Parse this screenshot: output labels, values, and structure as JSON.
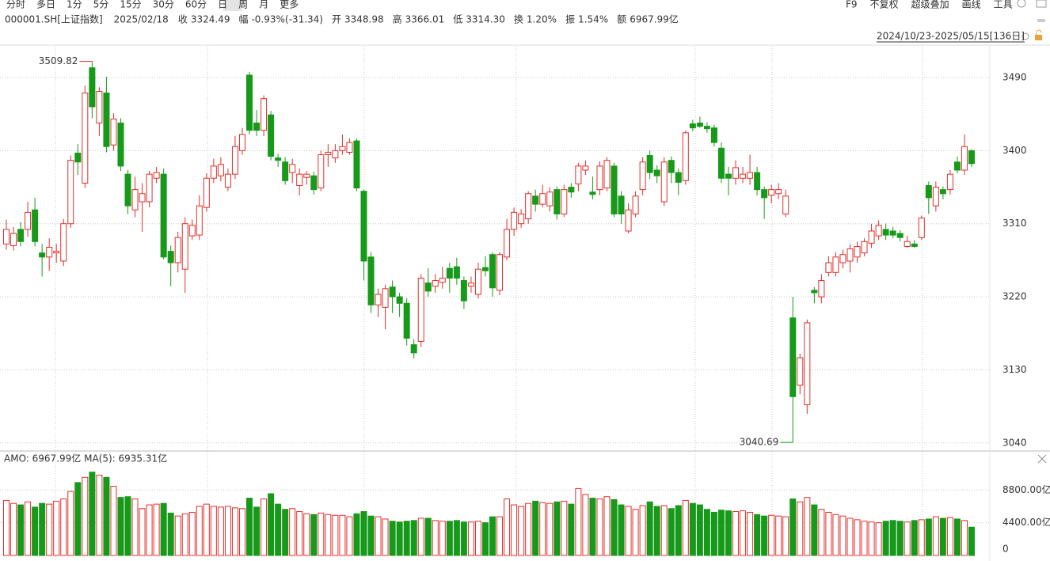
{
  "toolbar": {
    "periods": [
      "分时",
      "多日",
      "1分",
      "5分",
      "15分",
      "30分",
      "60分",
      "日",
      "周",
      "月",
      "更多"
    ],
    "tools": [
      "F9",
      "不复权",
      "超级叠加",
      "画线",
      "工具"
    ]
  },
  "info": {
    "symbol": "000001.SH[上证指数]",
    "date": "2025/02/18",
    "fields": [
      {
        "label": "收",
        "value": "3324.49",
        "color": "#17991a"
      },
      {
        "label": "幅",
        "value": "-0.93%(-31.34)",
        "color": "#17991a"
      },
      {
        "label": "开",
        "value": "3348.98",
        "color": "#17991a"
      },
      {
        "label": "高",
        "value": "3366.01",
        "color": "#e0302b"
      },
      {
        "label": "低",
        "value": "3314.30",
        "color": "#17991a"
      },
      {
        "label": "换",
        "value": "1.20%",
        "color": "#333333"
      },
      {
        "label": "振",
        "value": "1.54%",
        "color": "#333333"
      },
      {
        "label": "额",
        "value": "6967.99亿",
        "color": "#333333"
      }
    ]
  },
  "chart_data": {
    "type": "candlestick",
    "range_label": "2024/10/23-2025/05/15[136日]",
    "ylim": [
      3032,
      3529
    ],
    "yticks": [
      3040,
      3130,
      3220,
      3310,
      3400,
      3490
    ],
    "grid": true,
    "up_color": "#e0302b",
    "down_color": "#17991a",
    "annotations": [
      3509.82,
      3040.69
    ],
    "candles": [
      [
        3285,
        3315,
        3278,
        3303
      ],
      [
        3283,
        3306,
        3277,
        3298
      ],
      [
        3303,
        3312,
        3282,
        3288
      ],
      [
        3303,
        3337,
        3294,
        3324
      ],
      [
        3327,
        3342,
        3282,
        3288
      ],
      [
        3274,
        3285,
        3245,
        3269
      ],
      [
        3269,
        3292,
        3252,
        3281
      ],
      [
        3274,
        3285,
        3262,
        3276
      ],
      [
        3264,
        3316,
        3258,
        3310
      ],
      [
        3310,
        3394,
        3305,
        3388
      ],
      [
        3397,
        3408,
        3370,
        3386
      ],
      [
        3360,
        3480,
        3354,
        3471
      ],
      [
        3502,
        3509.82,
        3440,
        3454
      ],
      [
        3434,
        3478,
        3418,
        3473
      ],
      [
        3471,
        3491,
        3398,
        3405
      ],
      [
        3407,
        3446,
        3400,
        3439
      ],
      [
        3434,
        3440,
        3375,
        3381
      ],
      [
        3371,
        3376,
        3322,
        3332
      ],
      [
        3327,
        3368,
        3318,
        3352
      ],
      [
        3337,
        3360,
        3300,
        3347
      ],
      [
        3337,
        3375,
        3330,
        3371
      ],
      [
        3366,
        3380,
        3360,
        3373
      ],
      [
        3371,
        3378,
        3266,
        3269
      ],
      [
        3276,
        3283,
        3233,
        3262
      ],
      [
        3262,
        3300,
        3250,
        3293
      ],
      [
        3254,
        3318,
        3225,
        3310
      ],
      [
        3295,
        3315,
        3290,
        3308
      ],
      [
        3296,
        3345,
        3290,
        3332
      ],
      [
        3330,
        3372,
        3325,
        3366
      ],
      [
        3366,
        3390,
        3360,
        3381
      ],
      [
        3369,
        3392,
        3362,
        3383
      ],
      [
        3355,
        3378,
        3350,
        3371
      ],
      [
        3371,
        3418,
        3365,
        3405
      ],
      [
        3400,
        3428,
        3395,
        3420
      ],
      [
        3493,
        3497,
        3420,
        3425
      ],
      [
        3434,
        3450,
        3418,
        3425
      ],
      [
        3425,
        3468,
        3418,
        3464
      ],
      [
        3444,
        3449,
        3388,
        3393
      ],
      [
        3391,
        3396,
        3380,
        3388
      ],
      [
        3386,
        3392,
        3358,
        3363
      ],
      [
        3373,
        3390,
        3360,
        3383
      ],
      [
        3357,
        3378,
        3345,
        3371
      ],
      [
        3367,
        3375,
        3358,
        3371
      ],
      [
        3369,
        3374,
        3346,
        3352
      ],
      [
        3354,
        3400,
        3350,
        3395
      ],
      [
        3395,
        3408,
        3380,
        3398
      ],
      [
        3391,
        3408,
        3385,
        3400
      ],
      [
        3400,
        3420,
        3395,
        3405
      ],
      [
        3398,
        3415,
        3395,
        3410
      ],
      [
        3412,
        3415,
        3350,
        3354
      ],
      [
        3350,
        3352,
        3240,
        3264
      ],
      [
        3269,
        3275,
        3200,
        3210
      ],
      [
        3210,
        3230,
        3195,
        3223
      ],
      [
        3207,
        3235,
        3180,
        3230
      ],
      [
        3232,
        3240,
        3200,
        3220
      ],
      [
        3220,
        3225,
        3195,
        3212
      ],
      [
        3212,
        3218,
        3160,
        3169
      ],
      [
        3161,
        3168,
        3144,
        3151
      ],
      [
        3165,
        3248,
        3158,
        3243
      ],
      [
        3237,
        3255,
        3220,
        3227
      ],
      [
        3233,
        3248,
        3225,
        3240
      ],
      [
        3238,
        3257,
        3230,
        3243
      ],
      [
        3255,
        3262,
        3225,
        3243
      ],
      [
        3257,
        3268,
        3235,
        3243
      ],
      [
        3240,
        3245,
        3205,
        3215
      ],
      [
        3233,
        3245,
        3225,
        3237
      ],
      [
        3223,
        3262,
        3218,
        3254
      ],
      [
        3256,
        3270,
        3245,
        3252
      ],
      [
        3272,
        3275,
        3220,
        3231
      ],
      [
        3228,
        3275,
        3222,
        3272
      ],
      [
        3269,
        3316,
        3265,
        3303
      ],
      [
        3303,
        3330,
        3295,
        3324
      ],
      [
        3310,
        3328,
        3305,
        3322
      ],
      [
        3316,
        3350,
        3310,
        3347
      ],
      [
        3344,
        3352,
        3325,
        3334
      ],
      [
        3334,
        3358,
        3330,
        3347
      ],
      [
        3332,
        3355,
        3325,
        3349
      ],
      [
        3352,
        3356,
        3315,
        3322
      ],
      [
        3322,
        3358,
        3318,
        3352
      ],
      [
        3355,
        3360,
        3342,
        3349
      ],
      [
        3359,
        3385,
        3350,
        3381
      ],
      [
        3376,
        3388,
        3370,
        3381
      ],
      [
        3349,
        3368,
        3340,
        3346
      ],
      [
        3352,
        3387,
        3345,
        3381
      ],
      [
        3354,
        3392,
        3350,
        3388
      ],
      [
        3381,
        3385,
        3318,
        3322
      ],
      [
        3344,
        3350,
        3310,
        3322
      ],
      [
        3301,
        3335,
        3298,
        3327
      ],
      [
        3322,
        3350,
        3318,
        3344
      ],
      [
        3352,
        3392,
        3345,
        3386
      ],
      [
        3394,
        3400,
        3365,
        3373
      ],
      [
        3376,
        3382,
        3360,
        3369
      ],
      [
        3337,
        3392,
        3332,
        3386
      ],
      [
        3388,
        3393,
        3360,
        3373
      ],
      [
        3373,
        3378,
        3345,
        3361
      ],
      [
        3363,
        3425,
        3358,
        3422
      ],
      [
        3433,
        3438,
        3424,
        3428
      ],
      [
        3434,
        3442,
        3428,
        3430
      ],
      [
        3430,
        3435,
        3422,
        3427
      ],
      [
        3428,
        3432,
        3405,
        3410
      ],
      [
        3403,
        3410,
        3360,
        3366
      ],
      [
        3371,
        3380,
        3345,
        3366
      ],
      [
        3366,
        3388,
        3358,
        3379
      ],
      [
        3366,
        3380,
        3360,
        3371
      ],
      [
        3366,
        3395,
        3358,
        3373
      ],
      [
        3373,
        3380,
        3345,
        3352
      ],
      [
        3352,
        3356,
        3316,
        3342
      ],
      [
        3345,
        3358,
        3335,
        3352
      ],
      [
        3347,
        3360,
        3340,
        3352
      ],
      [
        3322,
        3352,
        3318,
        3344
      ],
      [
        3194,
        3220,
        3040.69,
        3097
      ],
      [
        3111,
        3150,
        3100,
        3145
      ],
      [
        3087,
        3192,
        3076,
        3188
      ],
      [
        3228,
        3232,
        3212,
        3225
      ],
      [
        3220,
        3248,
        3212,
        3240
      ],
      [
        3250,
        3270,
        3245,
        3262
      ],
      [
        3250,
        3275,
        3245,
        3269
      ],
      [
        3262,
        3278,
        3255,
        3272
      ],
      [
        3264,
        3285,
        3250,
        3279
      ],
      [
        3269,
        3288,
        3262,
        3282
      ],
      [
        3274,
        3292,
        3270,
        3288
      ],
      [
        3286,
        3310,
        3280,
        3301
      ],
      [
        3295,
        3314,
        3290,
        3308
      ],
      [
        3303,
        3310,
        3290,
        3296
      ],
      [
        3301,
        3306,
        3292,
        3296
      ],
      [
        3298,
        3302,
        3288,
        3293
      ],
      [
        3282,
        3295,
        3280,
        3288
      ],
      [
        3285,
        3290,
        3280,
        3282
      ],
      [
        3293,
        3320,
        3290,
        3317
      ],
      [
        3357,
        3362,
        3322,
        3342
      ],
      [
        3332,
        3362,
        3325,
        3355
      ],
      [
        3352,
        3356,
        3340,
        3347
      ],
      [
        3352,
        3376,
        3346,
        3371
      ],
      [
        3386,
        3393,
        3372,
        3376
      ],
      [
        3376,
        3420,
        3370,
        3405
      ],
      [
        3400,
        3402,
        3380,
        3384
      ]
    ],
    "volume": {
      "title": "AMO: 6967.99亿 MA(5): 6935.31亿",
      "ylim": [
        0,
        11700
      ],
      "yticks": [
        0,
        {
          "value": 4400,
          "label": "4400.00亿"
        },
        {
          "value": 8800,
          "label": "8800.00亿"
        }
      ],
      "values": [
        7400,
        7000,
        6800,
        7200,
        6500,
        7000,
        6900,
        7300,
        7600,
        8600,
        9800,
        10500,
        11200,
        10800,
        10500,
        9300,
        7800,
        7900,
        7600,
        6300,
        6800,
        6900,
        7000,
        5700,
        5300,
        5600,
        5800,
        6600,
        6900,
        6600,
        6500,
        6600,
        6400,
        6300,
        7700,
        6500,
        7600,
        8300,
        6900,
        6200,
        6300,
        5900,
        5600,
        5500,
        5700,
        5500,
        5400,
        5400,
        5200,
        5600,
        5900,
        5300,
        5200,
        4900,
        4600,
        4500,
        4600,
        4700,
        5000,
        5000,
        4700,
        4600,
        4600,
        4700,
        4500,
        4500,
        4600,
        4400,
        5200,
        5200,
        7600,
        6800,
        6600,
        7000,
        7300,
        7100,
        7000,
        7200,
        7300,
        6900,
        9000,
        8200,
        7700,
        7600,
        7900,
        7500,
        6800,
        6600,
        6200,
        6700,
        7200,
        6600,
        6700,
        6300,
        6700,
        7400,
        7000,
        6800,
        6200,
        5800,
        6100,
        6000,
        5900,
        6000,
        5800,
        5500,
        5300,
        5400,
        5300,
        5200,
        7600,
        7200,
        7800,
        6800,
        6200,
        5800,
        5500,
        5300,
        5000,
        4800,
        4600,
        4500,
        4400,
        4600,
        4700,
        4600,
        4500,
        4700,
        4800,
        4900,
        5200,
        5000,
        5100,
        4900,
        4700,
        3800
      ]
    }
  }
}
